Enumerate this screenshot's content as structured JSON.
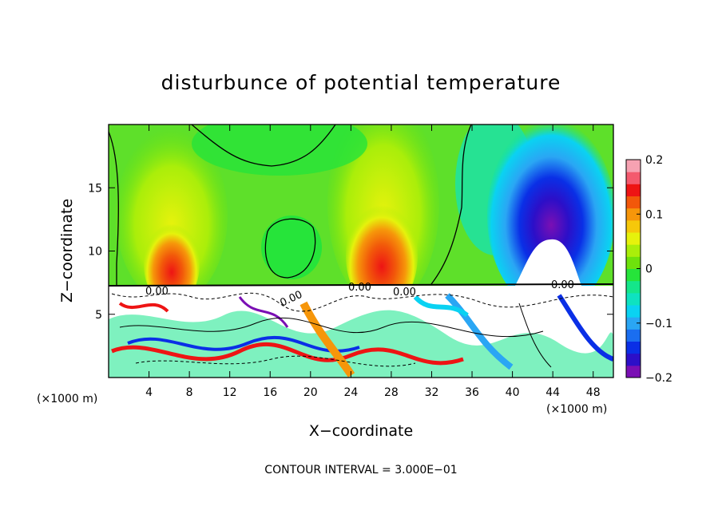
{
  "chart_data": {
    "type": "heatmap",
    "title": "disturbunce of potential temperature",
    "xlabel": "X−coordinate",
    "ylabel": "Z−coordinate",
    "x_unit_left": "(×1000 m)",
    "x_unit_right": "(×1000 m)",
    "xlim": [
      0,
      50
    ],
    "ylim": [
      0,
      20
    ],
    "x_ticks": [
      4,
      8,
      12,
      16,
      20,
      24,
      28,
      32,
      36,
      40,
      44,
      48
    ],
    "y_ticks": [
      5,
      10,
      15
    ],
    "colorbar": {
      "min": -0.2,
      "max": 0.2,
      "tick_values": [
        0.2,
        0.1,
        0,
        -0.1,
        -0.2
      ],
      "tick_labels": [
        "0.2",
        "0.1",
        "0",
        "−0.1",
        "−0.2"
      ],
      "colors": [
        "#7a0fb4",
        "#2c0fc8",
        "#0a2fe6",
        "#1a6ef0",
        "#2aa6f4",
        "#0ad2f2",
        "#0ee2c0",
        "#14e68a",
        "#26e43a",
        "#6ee20c",
        "#aaee0a",
        "#e6f20c",
        "#f6c80a",
        "#f6960a",
        "#f2580a",
        "#ee1414",
        "#f45a6e",
        "#f6a2b2"
      ]
    },
    "contour_labels": [
      "0.00",
      "0.00",
      "0.00",
      "0.00",
      "0.00"
    ],
    "footer": "CONTOUR INTERVAL = 3.000E−01",
    "grid": false,
    "legend": "colorbar-right"
  }
}
